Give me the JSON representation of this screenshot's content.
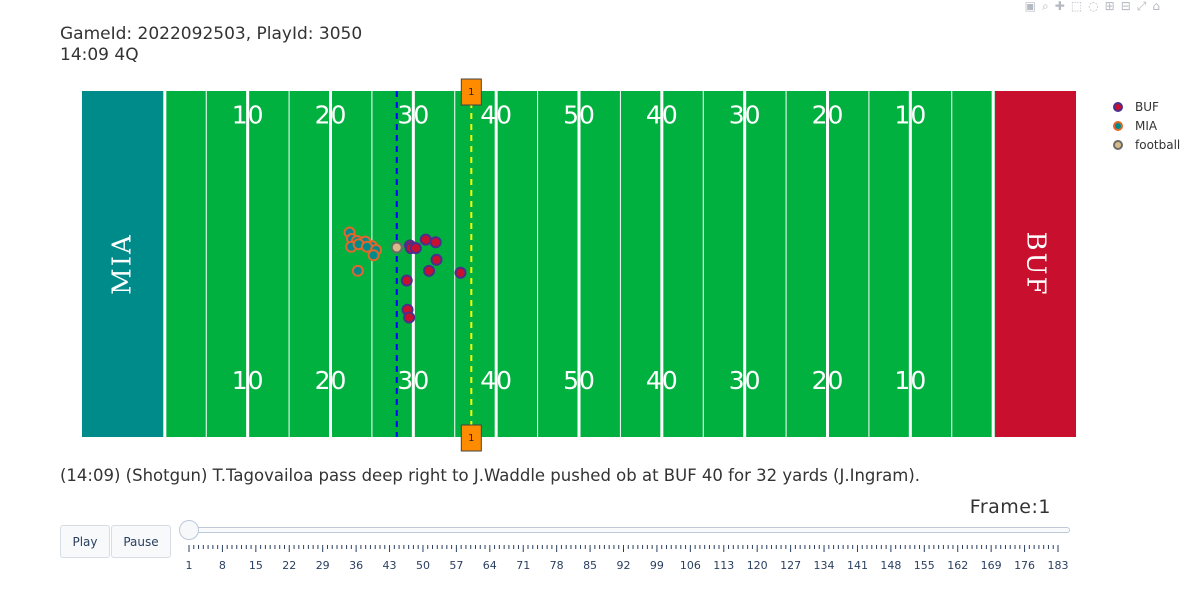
{
  "header": {
    "line1": "GameId: 2022092503, PlayId: 3050",
    "line2": "14:09 4Q"
  },
  "modebar": {
    "icons": [
      "camera-icon",
      "zoom-icon",
      "pan-icon",
      "box-select-icon",
      "lasso-icon",
      "zoom-in-icon",
      "zoom-out-icon",
      "autoscale-icon",
      "home-icon"
    ]
  },
  "chart_data": {
    "type": "scatter",
    "field": {
      "endzone_left_label": "MIA",
      "endzone_right_label": "BUF",
      "endzone_left_color": "#008b8b",
      "endzone_right_color": "#c8102e",
      "turf_color": "#00b140",
      "yard_numbers": [
        "10",
        "20",
        "30",
        "40",
        "50",
        "40",
        "30",
        "20",
        "10"
      ],
      "line_of_scrimmage": 38,
      "first_down_line": 47,
      "line_of_scrimmage_color": "#0000ff",
      "first_down_color": "#ffff00",
      "marker_label": "1"
    },
    "series": [
      {
        "name": "BUF",
        "fill": "#c8102e",
        "edge": "#4a2f8c",
        "points": [
          [
            39.3,
            19.6
          ],
          [
            39.2,
            24.1
          ],
          [
            39.6,
            29.5
          ],
          [
            39.7,
            29.1
          ],
          [
            40.3,
            29.1
          ],
          [
            41.5,
            30.4
          ],
          [
            42.7,
            30.0
          ],
          [
            42.8,
            27.3
          ],
          [
            41.9,
            25.6
          ],
          [
            45.7,
            25.3
          ],
          [
            39.5,
            18.4
          ]
        ]
      },
      {
        "name": "MIA",
        "fill": "#008b8b",
        "edge": "#e2672a",
        "points": [
          [
            32.3,
            31.5
          ],
          [
            32.6,
            30.5
          ],
          [
            33.2,
            30.2
          ],
          [
            34.2,
            30.1
          ],
          [
            35.0,
            29.4
          ],
          [
            32.5,
            29.3
          ],
          [
            33.4,
            29.7
          ],
          [
            34.4,
            29.3
          ],
          [
            35.5,
            28.8
          ],
          [
            35.2,
            28.0
          ],
          [
            33.3,
            25.6
          ]
        ]
      },
      {
        "name": "football",
        "fill": "#dbb887",
        "edge": "#6b6b6b",
        "points": [
          [
            38.0,
            29.2
          ]
        ]
      }
    ],
    "xlim": [
      0,
      120
    ],
    "ylim": [
      0,
      53.3
    ],
    "legend_position": "top-right",
    "grid": false
  },
  "legend": {
    "items": [
      "BUF",
      "MIA",
      "football"
    ]
  },
  "play_description": "(14:09) (Shotgun) T.Tagovailoa pass deep right to J.Waddle pushed ob at BUF 40 for 32 yards (J.Ingram).",
  "frame": {
    "label": "Frame:1",
    "current": 1,
    "min": 1,
    "max": 183,
    "tick_labels": [
      "1",
      "8",
      "15",
      "22",
      "29",
      "36",
      "43",
      "50",
      "57",
      "64",
      "71",
      "78",
      "85",
      "92",
      "99",
      "106",
      "113",
      "120",
      "127",
      "134",
      "141",
      "148",
      "155",
      "162",
      "169",
      "176",
      "183"
    ]
  },
  "controls": {
    "play_label": "Play",
    "pause_label": "Pause"
  }
}
